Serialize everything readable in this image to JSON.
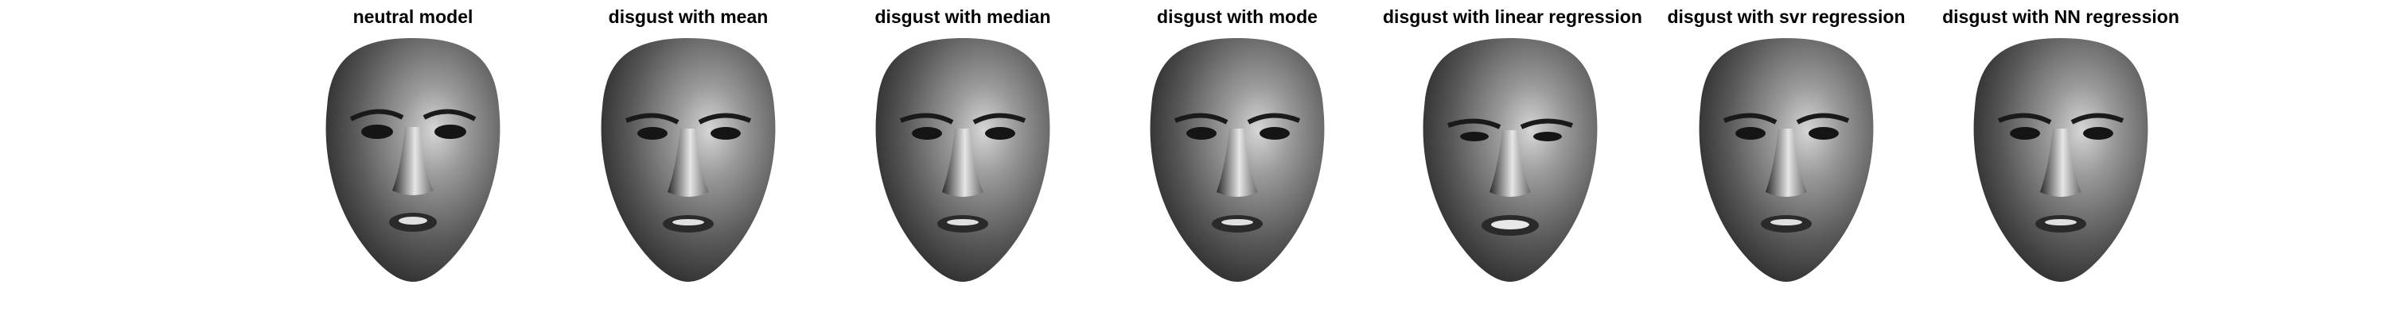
{
  "panels": [
    {
      "title": "neutral model",
      "expression": "neutral"
    },
    {
      "title": "disgust with mean",
      "expression": "disgust"
    },
    {
      "title": "disgust with median",
      "expression": "disgust"
    },
    {
      "title": "disgust with mode",
      "expression": "disgust"
    },
    {
      "title": "disgust with linear regression",
      "expression": "disgust-strong"
    },
    {
      "title": "disgust with svr regression",
      "expression": "disgust"
    },
    {
      "title": "disgust with NN regression",
      "expression": "disgust"
    }
  ],
  "colors": {
    "background": "#ffffff",
    "title_text": "#000000",
    "face_dark": "#141414",
    "face_light": "#cfcfcf"
  }
}
